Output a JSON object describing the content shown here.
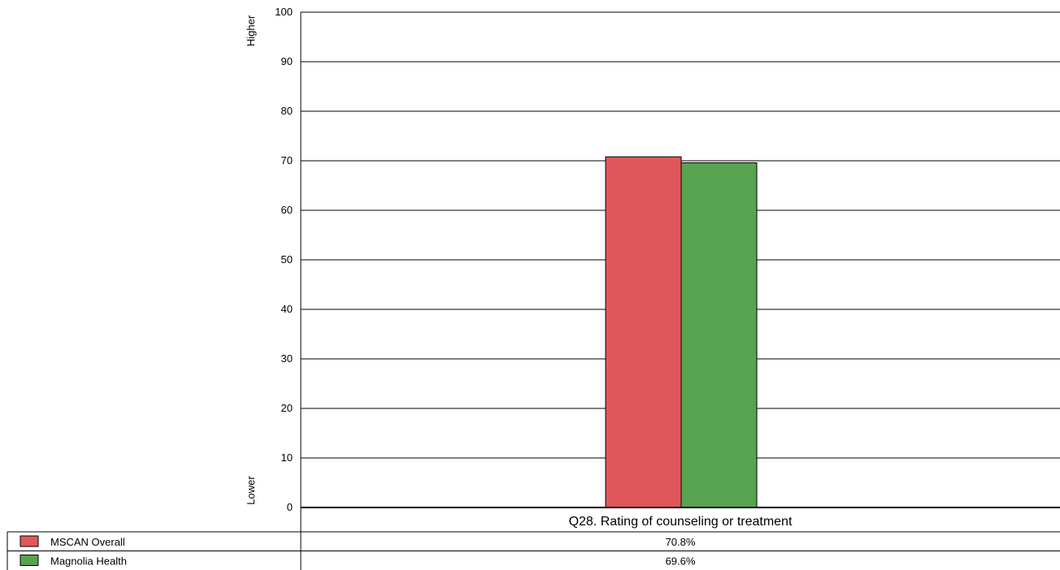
{
  "chart_data": {
    "type": "bar",
    "categories": [
      "Q28. Rating of counseling or treatment"
    ],
    "series": [
      {
        "name": "MSCAN Overall",
        "values": [
          70.8
        ],
        "color": "#e0575b",
        "label": "70.8%"
      },
      {
        "name": "Magnolia Health",
        "values": [
          69.6
        ],
        "color": "#57a350",
        "label": "69.6%"
      }
    ],
    "ylim": [
      0,
      100
    ],
    "yticks": [
      0,
      10,
      20,
      30,
      40,
      50,
      60,
      70,
      80,
      90,
      100
    ],
    "y_top_label": "Higher",
    "y_bottom_label": "Lower",
    "grid": true,
    "legend": "data table below chart"
  }
}
